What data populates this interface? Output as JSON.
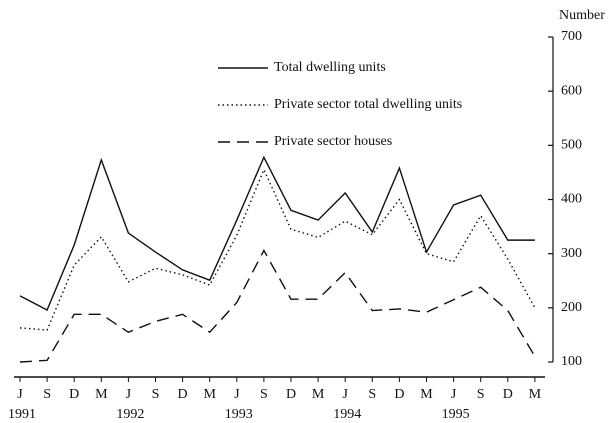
{
  "chart_data": {
    "type": "line",
    "y_label": "Number",
    "categories": [
      "J",
      "S",
      "D",
      "M",
      "J",
      "S",
      "D",
      "M",
      "J",
      "S",
      "D",
      "M",
      "J",
      "S",
      "D",
      "M",
      "J",
      "S",
      "D",
      "M"
    ],
    "years": [
      "1991",
      null,
      null,
      null,
      "1992",
      null,
      null,
      null,
      "1993",
      null,
      null,
      null,
      "1994",
      null,
      null,
      null,
      "1995",
      null,
      null,
      null
    ],
    "ylim": [
      100,
      700
    ],
    "yticks": [
      100,
      200,
      300,
      400,
      500,
      600,
      700
    ],
    "series": [
      {
        "name": "Total dwelling units",
        "color": "#111111",
        "line_style": "solid",
        "values": [
          222,
          196,
          316,
          473,
          338,
          303,
          270,
          251,
          362,
          478,
          380,
          362,
          412,
          340,
          458,
          303,
          390,
          408,
          325,
          325
        ]
      },
      {
        "name": "Private sector total dwelling units",
        "color": "#111111",
        "line_style": "dotted",
        "values": [
          163,
          159,
          279,
          331,
          248,
          273,
          261,
          242,
          334,
          455,
          345,
          330,
          360,
          335,
          400,
          300,
          285,
          370,
          290,
          200
        ]
      },
      {
        "name": "Private sector houses",
        "color": "#111111",
        "line_style": "dashed",
        "values": [
          100,
          103,
          188,
          188,
          155,
          175,
          188,
          155,
          210,
          306,
          216,
          216,
          265,
          195,
          198,
          192,
          215,
          238,
          195,
          110
        ]
      }
    ]
  }
}
